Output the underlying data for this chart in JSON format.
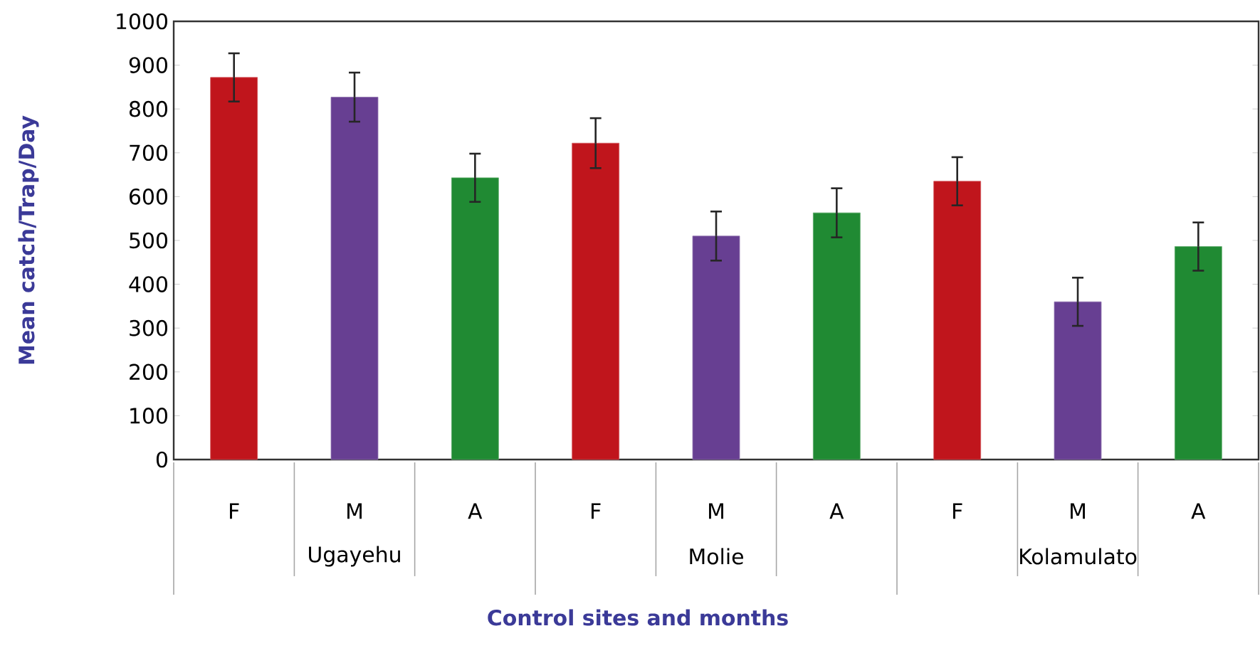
{
  "chart_data": {
    "type": "bar",
    "xlabel": "Control sites and months",
    "ylabel": "Mean catch/Trap/Day",
    "categories": [
      "F",
      "M",
      "A",
      "F",
      "M",
      "A",
      "F",
      "M",
      "A"
    ],
    "values": [
      872,
      827,
      643,
      722,
      510,
      563,
      635,
      360,
      486
    ],
    "errors": [
      55,
      56,
      55,
      57,
      56,
      56,
      55,
      55,
      55
    ],
    "colors": [
      "#c0151c",
      "#673f92",
      "#208a33",
      "#c0151c",
      "#673f92",
      "#208a33",
      "#c0151c",
      "#673f92",
      "#208a33"
    ],
    "ylim": [
      0,
      1000
    ],
    "yticks": [
      0,
      100,
      200,
      300,
      400,
      500,
      600,
      700,
      800,
      900,
      1000
    ],
    "annotations": [
      "Ugayehu",
      "Molie",
      "Kolamulato"
    ]
  }
}
